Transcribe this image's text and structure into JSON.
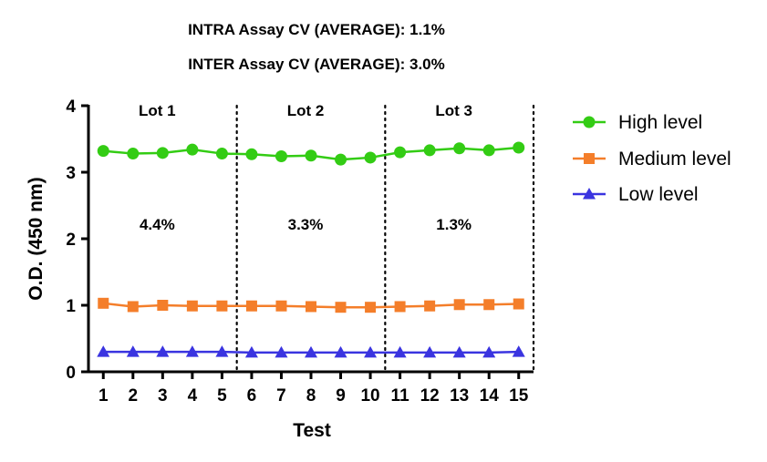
{
  "chart_data": {
    "type": "line",
    "title_lines": [
      "INTRA Assay CV (AVERAGE): 1.1%",
      "INTER Assay CV (AVERAGE): 3.0%"
    ],
    "xlabel": "Test",
    "ylabel": "O.D. (450 nm)",
    "x": [
      1,
      2,
      3,
      4,
      5,
      6,
      7,
      8,
      9,
      10,
      11,
      12,
      13,
      14,
      15
    ],
    "xlim": [
      0.5,
      15.5
    ],
    "ylim": [
      0,
      4
    ],
    "yticks": [
      0,
      1,
      2,
      3,
      4
    ],
    "grid": false,
    "legend_position": "right",
    "lot_dividers": [
      5.5,
      10.5,
      15.5
    ],
    "lots": [
      {
        "label": "Lot 1",
        "cv": "4.4%",
        "center_x": 3
      },
      {
        "label": "Lot 2",
        "cv": "3.3%",
        "center_x": 8
      },
      {
        "label": "Lot 3",
        "cv": "1.3%",
        "center_x": 13
      }
    ],
    "series": [
      {
        "name": "High level",
        "color": "#33cc14",
        "marker": "circle",
        "values": [
          3.32,
          3.28,
          3.29,
          3.34,
          3.28,
          3.27,
          3.24,
          3.25,
          3.19,
          3.22,
          3.3,
          3.33,
          3.36,
          3.33,
          3.37
        ]
      },
      {
        "name": "Medium level",
        "color": "#f47e2a",
        "marker": "square",
        "values": [
          1.03,
          0.98,
          1.0,
          0.99,
          0.99,
          0.99,
          0.99,
          0.98,
          0.97,
          0.97,
          0.98,
          0.99,
          1.01,
          1.01,
          1.02
        ]
      },
      {
        "name": "Low level",
        "color": "#3a34e0",
        "marker": "triangle",
        "values": [
          0.3,
          0.3,
          0.3,
          0.3,
          0.3,
          0.29,
          0.29,
          0.29,
          0.29,
          0.29,
          0.29,
          0.29,
          0.29,
          0.29,
          0.3
        ]
      }
    ]
  }
}
